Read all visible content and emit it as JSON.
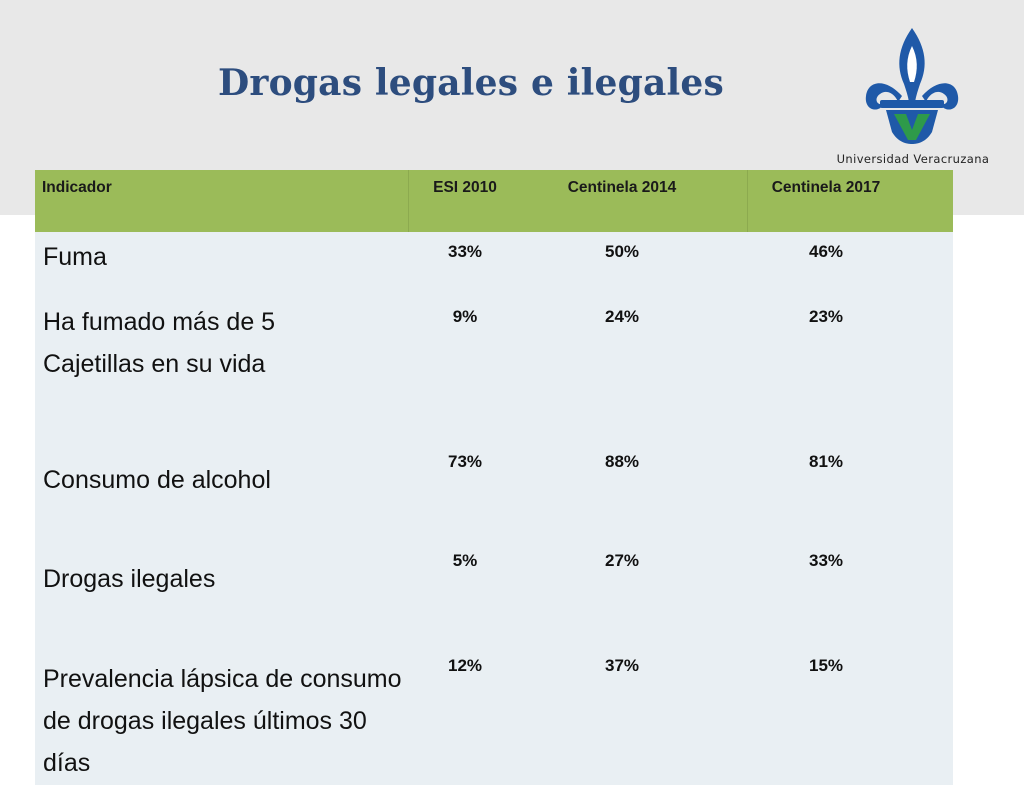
{
  "slide": {
    "title": "Drogas legales e ilegales",
    "logo": {
      "name": "Universidad Veracruzana",
      "colors": {
        "blue": "#1f59a8",
        "green": "#2e9a4a"
      }
    }
  },
  "table": {
    "headers": [
      "Indicador",
      "ESI 2010",
      "Centinela 2014",
      "Centinela 2017"
    ],
    "rows": [
      {
        "label": "Fuma",
        "values": [
          "33%",
          "50%",
          "46%"
        ]
      },
      {
        "label": "Ha fumado más de 5 Cajetillas en su vida",
        "values": [
          "9%",
          "24%",
          "23%"
        ]
      },
      {
        "label": "Consumo de alcohol",
        "values": [
          "73%",
          "88%",
          "81%"
        ]
      },
      {
        "label": "Drogas ilegales",
        "values": [
          "5%",
          "27%",
          "33%"
        ]
      },
      {
        "label": "Prevalencia lápsica de consumo de drogas ilegales últimos 30 días",
        "values": [
          "12%",
          "37%",
          "15%"
        ]
      }
    ]
  },
  "colors": {
    "header_bg": "#9bbb59",
    "table_bg": "#e9eff3",
    "title": "#2d4d7e",
    "band": "#e8e8e8"
  }
}
